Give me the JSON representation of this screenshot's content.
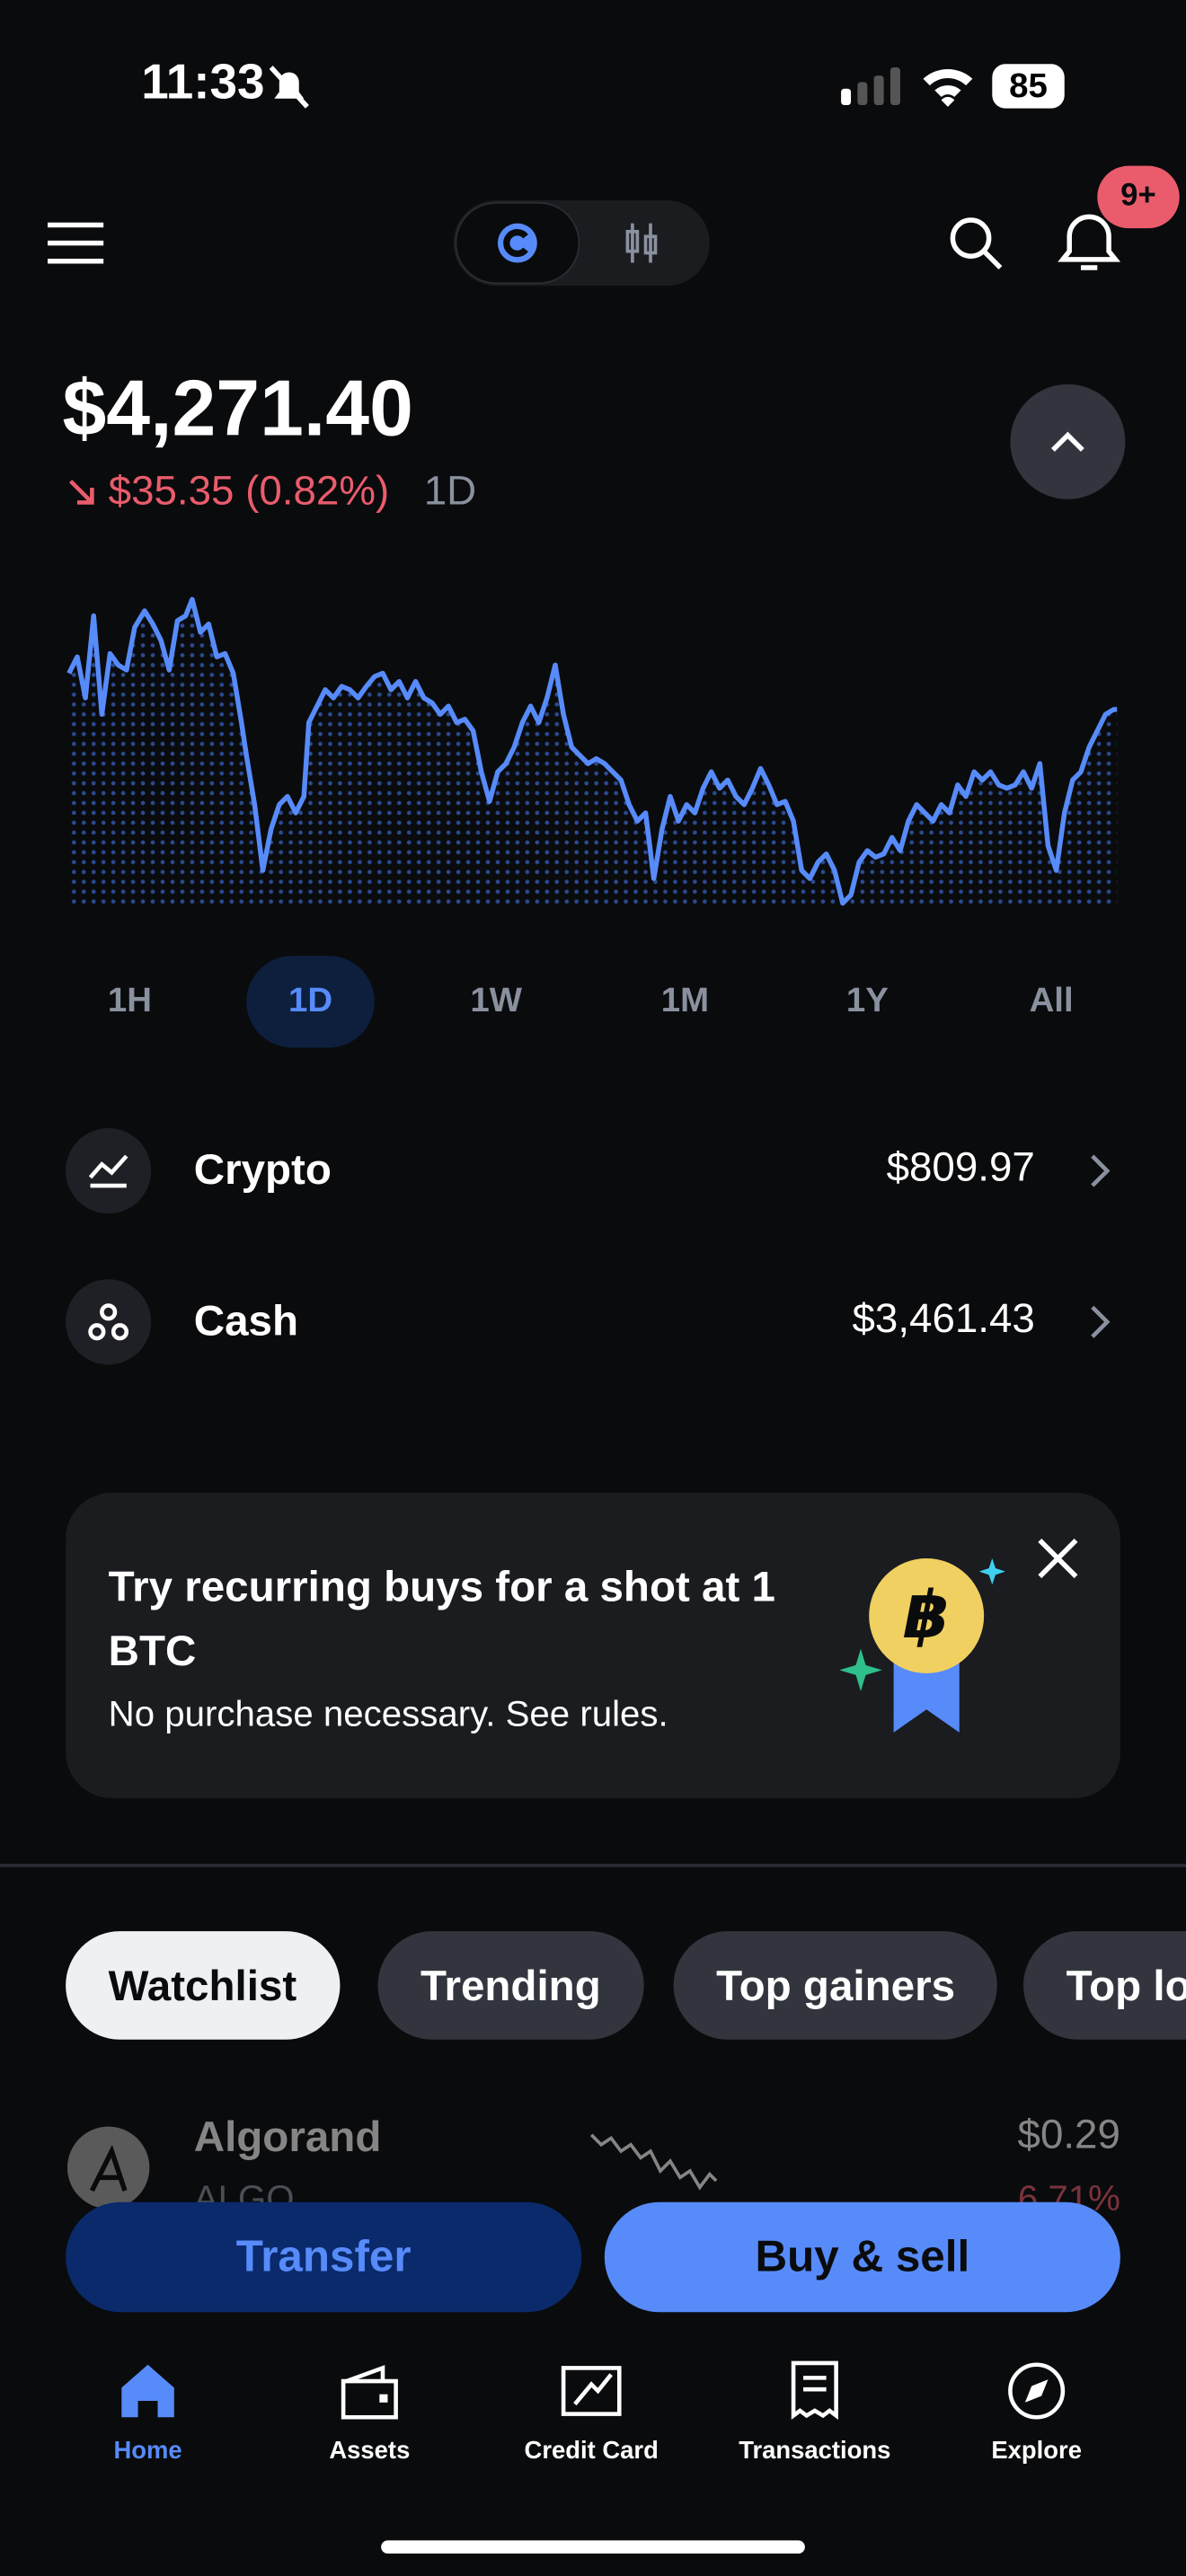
{
  "status": {
    "time": "11:33",
    "battery": "85"
  },
  "header": {
    "badge": "9+"
  },
  "balance": {
    "amount": "$4,271.40",
    "change": "$35.35 (0.82%)",
    "period": "1D"
  },
  "ranges": [
    "1H",
    "1D",
    "1W",
    "1M",
    "1Y",
    "All"
  ],
  "accounts": [
    {
      "label": "Crypto",
      "value": "$809.97"
    },
    {
      "label": "Cash",
      "value": "$3,461.43"
    }
  ],
  "promo": {
    "title": "Try recurring buys for a shot at 1 BTC",
    "subtitle": "No purchase necessary. See rules."
  },
  "tabs": [
    "Watchlist",
    "Trending",
    "Top gainers",
    "Top losers"
  ],
  "watchlist": [
    {
      "name": "Algorand",
      "symbol": "ALGO",
      "price": "$0.29",
      "change": "6.71%"
    }
  ],
  "actions": [
    "Transfer",
    "Buy & sell"
  ],
  "nav": [
    "Home",
    "Assets",
    "Credit Card",
    "Transactions",
    "Explore"
  ]
}
